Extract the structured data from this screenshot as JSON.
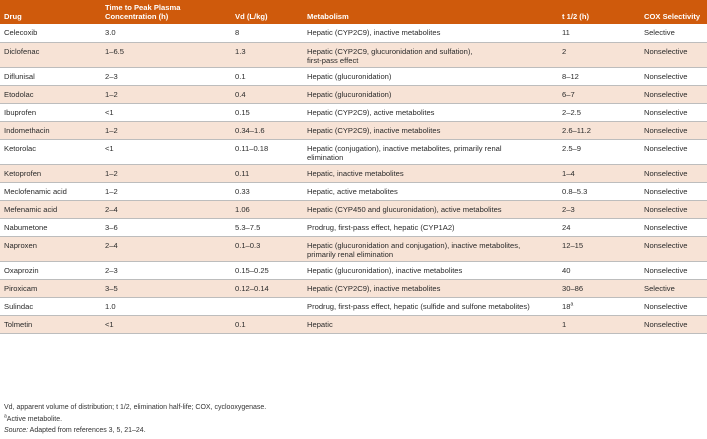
{
  "headers": {
    "drug": "Drug",
    "tpeak_line1": "Time to Peak Plasma",
    "tpeak_line2": "Concentration (h)",
    "vd": "Vd (L/kg)",
    "metabolism": "Metabolism",
    "half_life": "t 1/2 (h)",
    "cox": "COX Selectivity"
  },
  "rows": [
    {
      "drug": "Celecoxib",
      "tpeak": "3.0",
      "vd": "8",
      "met1": "Hepatic (CYP2C9), inactive metabolites",
      "met2": "",
      "thalf": "11",
      "thalf_sup": "",
      "cox": "Selective"
    },
    {
      "drug": "Diclofenac",
      "tpeak": "1–6.5",
      "vd": "1.3",
      "met1": "Hepatic (CYP2C9, glucuronidation and sulfation),",
      "met2": "first-pass effect",
      "thalf": "2",
      "thalf_sup": "",
      "cox": "Nonselective"
    },
    {
      "drug": "Diflunisal",
      "tpeak": "2–3",
      "vd": "0.1",
      "met1": "Hepatic (glucuronidation)",
      "met2": "",
      "thalf": "8–12",
      "thalf_sup": "",
      "cox": "Nonselective"
    },
    {
      "drug": "Etodolac",
      "tpeak": "1–2",
      "vd": "0.4",
      "met1": "Hepatic (glucuronidation)",
      "met2": "",
      "thalf": "6–7",
      "thalf_sup": "",
      "cox": "Nonselective"
    },
    {
      "drug": "Ibuprofen",
      "tpeak": "<1",
      "vd": "0.15",
      "met1": "Hepatic (CYP2C9), active metabolites",
      "met2": "",
      "thalf": "2–2.5",
      "thalf_sup": "",
      "cox": "Nonselective"
    },
    {
      "drug": "Indomethacin",
      "tpeak": "1–2",
      "vd": "0.34–1.6",
      "met1": "Hepatic (CYP2C9), inactive metabolites",
      "met2": "",
      "thalf": "2.6–11.2",
      "thalf_sup": "",
      "cox": "Nonselective"
    },
    {
      "drug": "Ketorolac",
      "tpeak": "<1",
      "vd": "0.11–0.18",
      "met1": "Hepatic (conjugation), inactive metabolites, primarily renal",
      "met2": "elimination",
      "thalf": "2.5–9",
      "thalf_sup": "",
      "cox": "Nonselective"
    },
    {
      "drug": "Ketoprofen",
      "tpeak": "1–2",
      "vd": "0.11",
      "met1": "Hepatic, inactive metabolites",
      "met2": "",
      "thalf": "1–4",
      "thalf_sup": "",
      "cox": "Nonselective"
    },
    {
      "drug": "Meclofenamic acid",
      "tpeak": "1–2",
      "vd": "0.33",
      "met1": "Hepatic, active metabolites",
      "met2": "",
      "thalf": "0.8–5.3",
      "thalf_sup": "",
      "cox": "Nonselective"
    },
    {
      "drug": "Mefenamic acid",
      "tpeak": "2–4",
      "vd": "1.06",
      "met1": "Hepatic (CYP450 and glucuronidation), active metabolites",
      "met2": "",
      "thalf": "2–3",
      "thalf_sup": "",
      "cox": "Nonselective"
    },
    {
      "drug": "Nabumetone",
      "tpeak": "3–6",
      "vd": "5.3–7.5",
      "met1": "Prodrug, first-pass effect, hepatic (CYP1A2)",
      "met2": "",
      "thalf": "24",
      "thalf_sup": "",
      "cox": "Nonselective"
    },
    {
      "drug": "Naproxen",
      "tpeak": "2–4",
      "vd": "0.1–0.3",
      "met1": "Hepatic (glucuronidation and conjugation), inactive metabolites,",
      "met2": "primarily renal elimination",
      "thalf": "12–15",
      "thalf_sup": "",
      "cox": "Nonselective"
    },
    {
      "drug": "Oxaprozin",
      "tpeak": "2–3",
      "vd": "0.15–0.25",
      "met1": "Hepatic (glucuronidation), inactive metabolites",
      "met2": "",
      "thalf": "40",
      "thalf_sup": "",
      "cox": "Nonselective"
    },
    {
      "drug": "Piroxicam",
      "tpeak": "3–5",
      "vd": "0.12–0.14",
      "met1": "Hepatic (CYP2C9), inactive metabolites",
      "met2": "",
      "thalf": "30–86",
      "thalf_sup": "",
      "cox": "Selective"
    },
    {
      "drug": "Sulindac",
      "tpeak": "1.0",
      "vd": "",
      "met1": "Prodrug, first-pass effect, hepatic (sulfide and sulfone metabolites)",
      "met2": "",
      "thalf": "18",
      "thalf_sup": "a",
      "cox": "Nonselective"
    },
    {
      "drug": "Tolmetin",
      "tpeak": "<1",
      "vd": "0.1",
      "met1": "Hepatic",
      "met2": "",
      "thalf": "1",
      "thalf_sup": "",
      "cox": "Nonselective"
    }
  ],
  "footnotes": {
    "abbrev": "Vd, apparent volume of distribution; t 1/2, elimination half-life; COX, cyclooxygenase.",
    "note_sup": "a",
    "note_text": "Active metabolite.",
    "source_label": "Source:",
    "source_text": " Adapted from references 3, 5, 21–24."
  },
  "colors": {
    "header_bg": "#cf5a0c",
    "header_text": "#ffffff",
    "stripe_bg": "#f7e3d6",
    "row_rule": "#bdbdbd"
  }
}
